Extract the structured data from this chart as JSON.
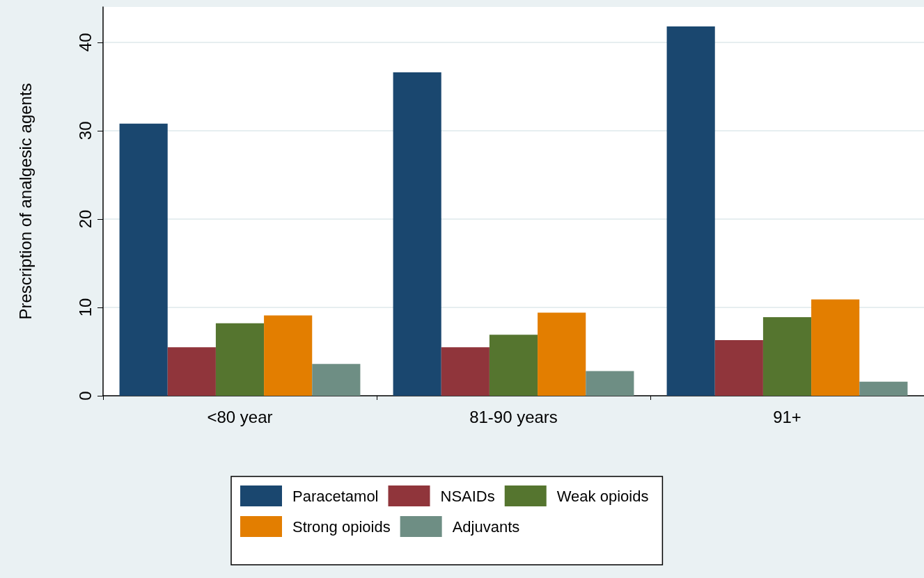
{
  "chart_data": {
    "type": "bar",
    "ylabel": "Prescription of analgesic agents",
    "categories": [
      "<80 year",
      "81-90 years",
      "91+"
    ],
    "series": [
      {
        "name": "Paracetamol",
        "color": "#1a476f",
        "values": [
          30.8,
          36.6,
          41.8
        ]
      },
      {
        "name": "NSAIDs",
        "color": "#90353b",
        "values": [
          5.5,
          5.5,
          6.3
        ]
      },
      {
        "name": "Weak opioids",
        "color": "#55752f",
        "values": [
          8.2,
          6.9,
          8.9
        ]
      },
      {
        "name": "Strong opioids",
        "color": "#e37e00",
        "values": [
          9.1,
          9.4,
          10.9
        ]
      },
      {
        "name": "Adjuvants",
        "color": "#6e8e84",
        "values": [
          3.6,
          2.8,
          1.6
        ]
      }
    ],
    "ylim": [
      0,
      44
    ],
    "yticks": [
      0,
      10,
      20,
      30,
      40
    ],
    "grid": "y",
    "legend": "bottom"
  }
}
